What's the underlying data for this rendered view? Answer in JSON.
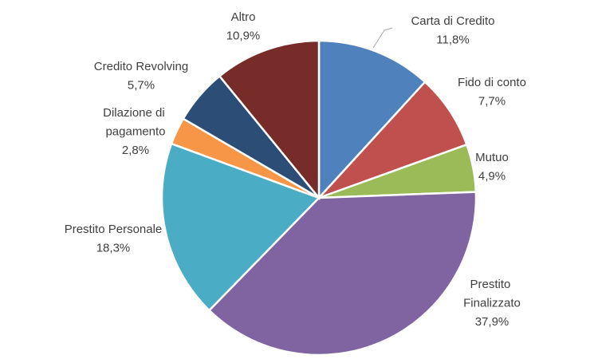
{
  "chart_data": {
    "type": "pie",
    "categories": [
      "Carta di Credito",
      "Fido di conto",
      "Mutuo",
      "Prestito Finalizzato",
      "Prestito Personale",
      "Dilazione di pagamento",
      "Credito Revolving",
      "Altro"
    ],
    "values": [
      11.8,
      7.7,
      4.9,
      37.9,
      18.3,
      2.8,
      5.7,
      10.9
    ],
    "value_labels": [
      "11,8%",
      "7,7%",
      "4,9%",
      "37,9%",
      "18,3%",
      "2,8%",
      "5,7%",
      "10,9%"
    ],
    "colors": [
      "#4f81bd",
      "#c0504d",
      "#9bbb59",
      "#8064a2",
      "#4bacc6",
      "#f79646",
      "#2c4d75",
      "#772c2a"
    ]
  }
}
